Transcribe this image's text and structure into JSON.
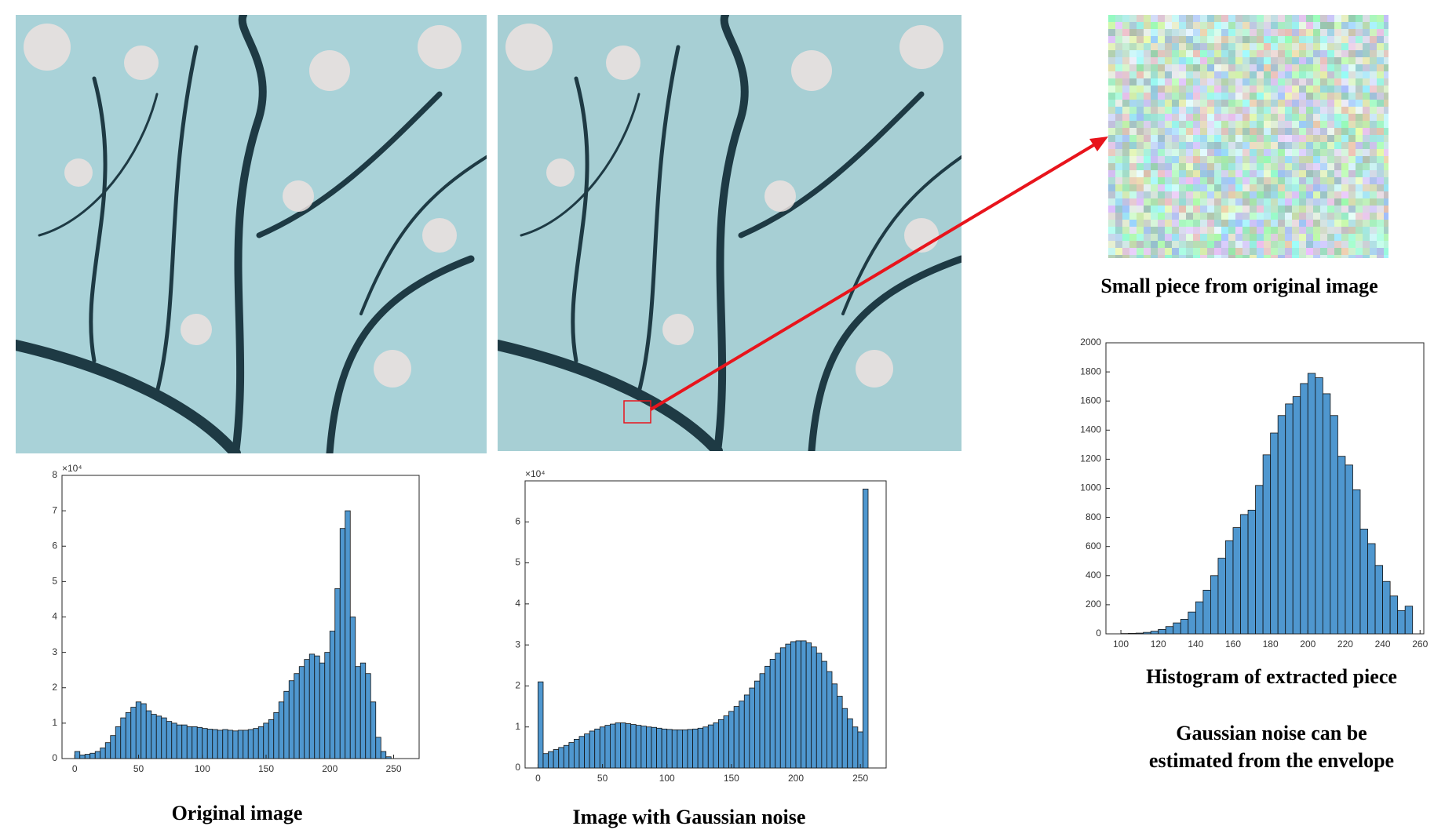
{
  "chart_data": [
    {
      "type": "histogram",
      "caption": "Original image",
      "y_multiplier": "×10⁴",
      "color": "#4f97cf",
      "bins": [
        0,
        4,
        8,
        12,
        16,
        20,
        24,
        28,
        32,
        36,
        40,
        44,
        48,
        52,
        56,
        60,
        64,
        68,
        72,
        76,
        80,
        84,
        88,
        92,
        96,
        100,
        104,
        108,
        112,
        116,
        120,
        124,
        128,
        132,
        136,
        140,
        144,
        148,
        152,
        156,
        160,
        164,
        168,
        172,
        176,
        180,
        184,
        188,
        192,
        196,
        200,
        204,
        208,
        212,
        216,
        220,
        224,
        228,
        232,
        236,
        240,
        244,
        248,
        252,
        256
      ],
      "values": [
        0.2,
        0.1,
        0.12,
        0.15,
        0.2,
        0.3,
        0.45,
        0.65,
        0.9,
        1.15,
        1.3,
        1.45,
        1.6,
        1.55,
        1.35,
        1.25,
        1.2,
        1.15,
        1.05,
        1.0,
        0.95,
        0.95,
        0.9,
        0.9,
        0.88,
        0.85,
        0.83,
        0.82,
        0.8,
        0.82,
        0.8,
        0.78,
        0.8,
        0.8,
        0.82,
        0.85,
        0.9,
        1.0,
        1.1,
        1.3,
        1.6,
        1.9,
        2.2,
        2.4,
        2.6,
        2.8,
        2.95,
        2.9,
        2.7,
        3.0,
        3.6,
        4.8,
        6.5,
        7.0,
        4.0,
        2.6,
        2.7,
        2.4,
        1.6,
        0.6,
        0.2,
        0.05,
        0,
        0
      ],
      "xlim": [
        -10,
        270
      ],
      "xticks": [
        0,
        50,
        100,
        150,
        200,
        250
      ],
      "ylim": [
        0,
        8
      ],
      "yticks": [
        0,
        1,
        2,
        3,
        4,
        5,
        6,
        7,
        8
      ]
    },
    {
      "type": "histogram",
      "caption": "Image with Gaussian noise",
      "y_multiplier": "×10⁴",
      "color": "#4f97cf",
      "bins": [
        0,
        4,
        8,
        12,
        16,
        20,
        24,
        28,
        32,
        36,
        40,
        44,
        48,
        52,
        56,
        60,
        64,
        68,
        72,
        76,
        80,
        84,
        88,
        92,
        96,
        100,
        104,
        108,
        112,
        116,
        120,
        124,
        128,
        132,
        136,
        140,
        144,
        148,
        152,
        156,
        160,
        164,
        168,
        172,
        176,
        180,
        184,
        188,
        192,
        196,
        200,
        204,
        208,
        212,
        216,
        220,
        224,
        228,
        232,
        236,
        240,
        244,
        248,
        252,
        256
      ],
      "values": [
        2.1,
        0.35,
        0.4,
        0.45,
        0.5,
        0.55,
        0.62,
        0.7,
        0.77,
        0.83,
        0.9,
        0.95,
        1.0,
        1.04,
        1.07,
        1.1,
        1.1,
        1.08,
        1.06,
        1.04,
        1.02,
        1.0,
        0.99,
        0.97,
        0.95,
        0.94,
        0.93,
        0.93,
        0.93,
        0.94,
        0.95,
        0.97,
        1.0,
        1.05,
        1.1,
        1.18,
        1.27,
        1.38,
        1.5,
        1.63,
        1.78,
        1.95,
        2.12,
        2.3,
        2.48,
        2.65,
        2.8,
        2.93,
        3.02,
        3.08,
        3.1,
        3.1,
        3.05,
        2.95,
        2.8,
        2.6,
        2.35,
        2.05,
        1.75,
        1.45,
        1.2,
        1.0,
        0.88,
        6.8
      ],
      "xlim": [
        -10,
        270
      ],
      "xticks": [
        0,
        50,
        100,
        150,
        200,
        250
      ],
      "ylim": [
        0,
        7
      ],
      "yticks": [
        0,
        1,
        2,
        3,
        4,
        5,
        6
      ]
    },
    {
      "type": "histogram",
      "caption": "Histogram of extracted piece",
      "color": "#4f97cf",
      "bins": [
        100,
        104,
        108,
        112,
        116,
        120,
        124,
        128,
        132,
        136,
        140,
        144,
        148,
        152,
        156,
        160,
        164,
        168,
        172,
        176,
        180,
        184,
        188,
        192,
        196,
        200,
        204,
        208,
        212,
        216,
        220,
        224,
        228,
        232,
        236,
        240,
        244,
        248,
        252,
        256
      ],
      "values": [
        2,
        3,
        5,
        10,
        18,
        30,
        50,
        75,
        100,
        150,
        220,
        300,
        400,
        520,
        640,
        730,
        820,
        850,
        1020,
        1230,
        1380,
        1500,
        1580,
        1630,
        1720,
        1790,
        1760,
        1650,
        1500,
        1220,
        1160,
        990,
        720,
        620,
        470,
        360,
        260,
        160,
        190
      ],
      "xlim": [
        92,
        262
      ],
      "xticks": [
        100,
        120,
        140,
        160,
        180,
        200,
        220,
        240,
        260
      ],
      "ylim": [
        0,
        2000
      ],
      "yticks": [
        0,
        200,
        400,
        600,
        800,
        1000,
        1200,
        1400,
        1600,
        1800,
        2000
      ]
    }
  ],
  "small_piece_caption": "Small piece from original image",
  "notes": [
    "Gaussian noise can be",
    "estimated from the envelope"
  ]
}
